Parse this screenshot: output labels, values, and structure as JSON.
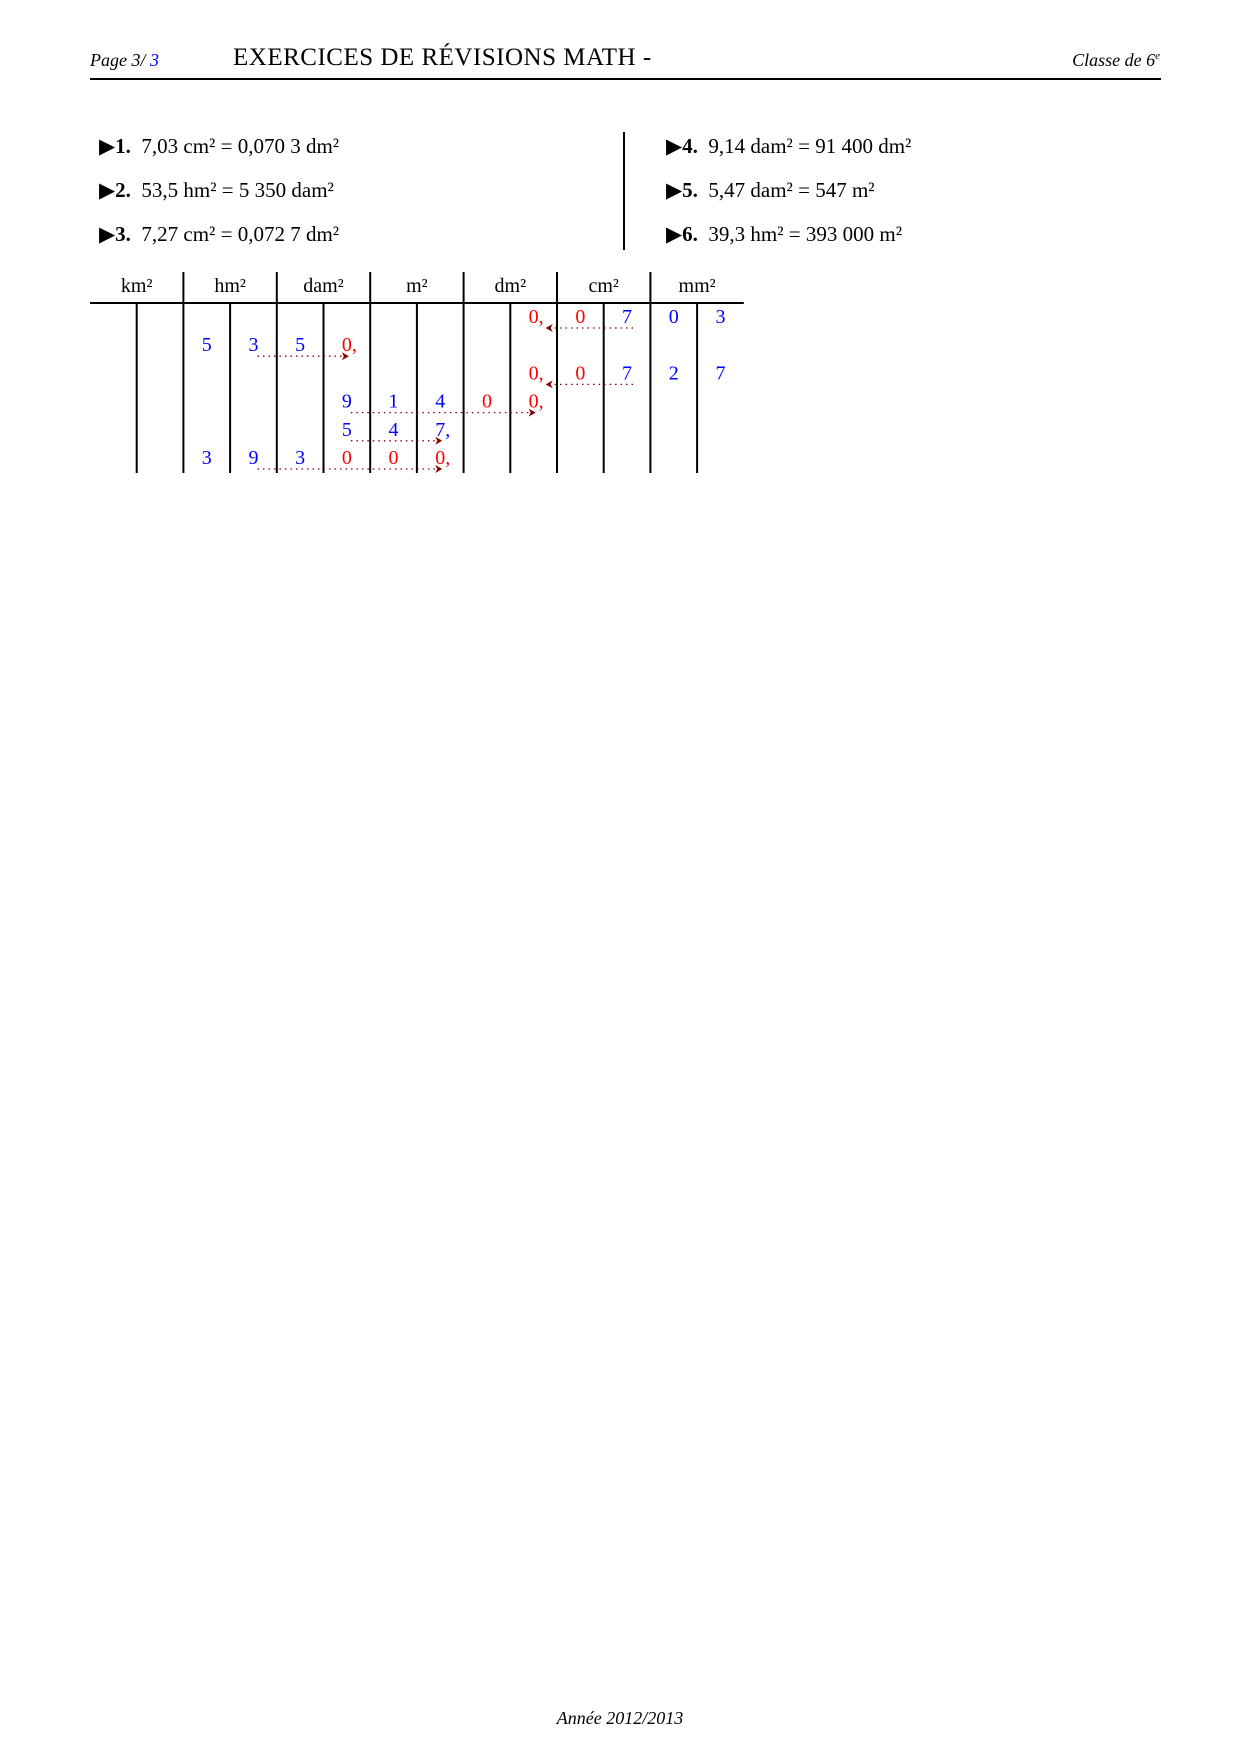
{
  "header": {
    "page_label": "Page 3/",
    "page_total": "3",
    "title": "EXERCICES DE RÉVISIONS MATH -",
    "class_label": "Classe de 6",
    "class_sup": "e"
  },
  "exercises_left": [
    {
      "num": "1.",
      "text": "7,03 cm² = 0,070 3 dm²"
    },
    {
      "num": "2.",
      "text": "53,5 hm² = 5 350 dam²"
    },
    {
      "num": "3.",
      "text": "7,27 cm² = 0,072 7 dm²"
    }
  ],
  "exercises_right": [
    {
      "num": "4.",
      "text": "9,14 dam² = 91 400 dm²"
    },
    {
      "num": "5.",
      "text": "5,47 dam² = 547 m²"
    },
    {
      "num": "6.",
      "text": "39,3 hm² = 393 000 m²"
    }
  ],
  "bullet_icon": "triangle-right",
  "colors": {
    "given": "#0000ff",
    "added": "#ff0000",
    "arrow": "#8b0000"
  },
  "table": {
    "units": [
      "km²",
      "hm²",
      "dam²",
      "m²",
      "dm²",
      "cm²",
      "mm²"
    ],
    "rows": [
      {
        "cells": [
          [
            "",
            ""
          ],
          [
            "",
            ""
          ],
          [
            "",
            ""
          ],
          [
            "",
            ""
          ],
          [
            "",
            ""
          ],
          [
            "",
            ""
          ],
          [
            "",
            ""
          ],
          [
            "",
            ""
          ],
          [
            "",
            ""
          ],
          [
            "0,",
            "r"
          ],
          [
            "0",
            "r"
          ],
          [
            "7",
            "b"
          ],
          [
            "0",
            "b"
          ],
          [
            "3",
            "b"
          ]
        ],
        "arrow": [
          11,
          9
        ]
      },
      {
        "cells": [
          [
            "",
            ""
          ],
          [
            "",
            ""
          ],
          [
            "5",
            "b"
          ],
          [
            "3",
            "b"
          ],
          [
            "5",
            "b"
          ],
          [
            "0,",
            "r"
          ],
          [
            "",
            ""
          ],
          [
            "",
            ""
          ],
          [
            "",
            ""
          ],
          [
            "",
            ""
          ],
          [
            "",
            ""
          ],
          [
            "",
            ""
          ],
          [
            "",
            ""
          ],
          [
            "",
            ""
          ]
        ],
        "arrow": [
          3,
          5
        ]
      },
      {
        "cells": [
          [
            "",
            ""
          ],
          [
            "",
            ""
          ],
          [
            "",
            ""
          ],
          [
            "",
            ""
          ],
          [
            "",
            ""
          ],
          [
            "",
            ""
          ],
          [
            "",
            ""
          ],
          [
            "",
            ""
          ],
          [
            "",
            ""
          ],
          [
            "0,",
            "r"
          ],
          [
            "0",
            "r"
          ],
          [
            "7",
            "b"
          ],
          [
            "2",
            "b"
          ],
          [
            "7",
            "b"
          ]
        ],
        "arrow": [
          11,
          9
        ]
      },
      {
        "cells": [
          [
            "",
            ""
          ],
          [
            "",
            ""
          ],
          [
            "",
            ""
          ],
          [
            "",
            ""
          ],
          [
            "",
            ""
          ],
          [
            "9",
            "b"
          ],
          [
            "1",
            "b"
          ],
          [
            "4",
            "b"
          ],
          [
            "0",
            "r"
          ],
          [
            "0,",
            "r"
          ],
          [
            "",
            ""
          ],
          [
            "",
            ""
          ],
          [
            "",
            ""
          ],
          [
            "",
            ""
          ]
        ],
        "arrow": [
          5,
          9
        ]
      },
      {
        "cells": [
          [
            "",
            ""
          ],
          [
            "",
            ""
          ],
          [
            "",
            ""
          ],
          [
            "",
            ""
          ],
          [
            "",
            ""
          ],
          [
            "5",
            "b"
          ],
          [
            "4",
            "b"
          ],
          [
            "7,",
            "b"
          ],
          [
            "",
            ""
          ],
          [
            "",
            ""
          ],
          [
            "",
            ""
          ],
          [
            "",
            ""
          ],
          [
            "",
            ""
          ],
          [
            "",
            ""
          ]
        ],
        "arrow": [
          5,
          7
        ]
      },
      {
        "cells": [
          [
            "",
            ""
          ],
          [
            "",
            ""
          ],
          [
            "3",
            "b"
          ],
          [
            "9",
            "b"
          ],
          [
            "3",
            "b"
          ],
          [
            "0",
            "r"
          ],
          [
            "0",
            "r"
          ],
          [
            "0,",
            "r"
          ],
          [
            "",
            ""
          ],
          [
            "",
            ""
          ],
          [
            "",
            ""
          ],
          [
            "",
            ""
          ],
          [
            "",
            ""
          ],
          [
            "",
            ""
          ]
        ],
        "arrow": [
          3,
          7
        ]
      }
    ]
  },
  "footer": "Année 2012/2013"
}
